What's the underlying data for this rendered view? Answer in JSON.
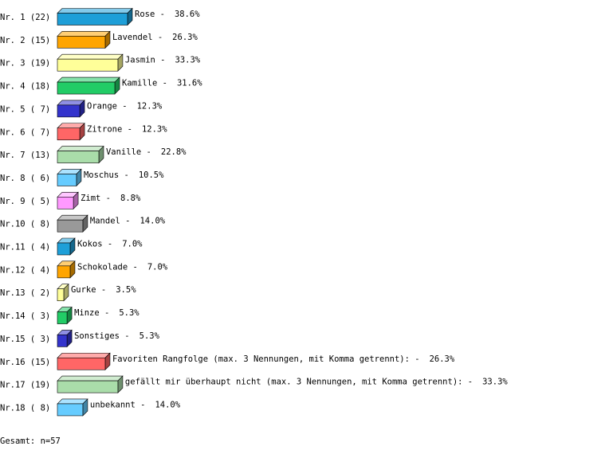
{
  "chart_data": {
    "type": "bar",
    "orientation": "horizontal",
    "categories": [
      "Nr. 1 (22)",
      "Nr. 2 (15)",
      "Nr. 3 (19)",
      "Nr. 4 (18)",
      "Nr. 5 ( 7)",
      "Nr. 6 ( 7)",
      "Nr. 7 (13)",
      "Nr. 8 ( 6)",
      "Nr. 9 ( 5)",
      "Nr.10 ( 8)",
      "Nr.11 ( 4)",
      "Nr.12 ( 4)",
      "Nr.13 ( 2)",
      "Nr.14 ( 3)",
      "Nr.15 ( 3)",
      "Nr.16 (15)",
      "Nr.17 (19)",
      "Nr.18 ( 8)"
    ],
    "names": [
      "Rose -",
      "Lavendel -",
      "Jasmin -",
      "Kamille -",
      "Orange -",
      "Zitrone -",
      "Vanille -",
      "Moschus -",
      "Zimt -",
      "Mandel -",
      "Kokos -",
      "Schokolade -",
      "Gurke -",
      "Minze -",
      "Sonstiges -",
      "Favoriten Rangfolge (max. 3 Nennungen, mit Komma getrennt): -",
      "gefällt mir überhaupt nicht (max. 3 Nennungen, mit Komma getrennt): -",
      "unbekannt -"
    ],
    "values": [
      38.6,
      26.3,
      33.3,
      31.6,
      12.3,
      12.3,
      22.8,
      10.5,
      8.8,
      14.0,
      7.0,
      7.0,
      3.5,
      5.3,
      5.3,
      26.3,
      33.3,
      14.0
    ],
    "value_labels": [
      "38.6%",
      "26.3%",
      "33.3%",
      "31.6%",
      "12.3%",
      "12.3%",
      "22.8%",
      "10.5%",
      "8.8%",
      "14.0%",
      "7.0%",
      "7.0%",
      "3.5%",
      "5.3%",
      "5.3%",
      "26.3%",
      "33.3%",
      "14.0%"
    ],
    "colors": [
      "#1e9fd8",
      "#ffa500",
      "#ffff99",
      "#22cc66",
      "#3333cc",
      "#ff6666",
      "#aaddaa",
      "#66ccff",
      "#ff99ff",
      "#999999",
      "#1e9fd8",
      "#ffa500",
      "#ffff99",
      "#22cc66",
      "#3333cc",
      "#ff6666",
      "#aaddaa",
      "#66ccff"
    ],
    "footer": "Gesamt: n=57"
  }
}
